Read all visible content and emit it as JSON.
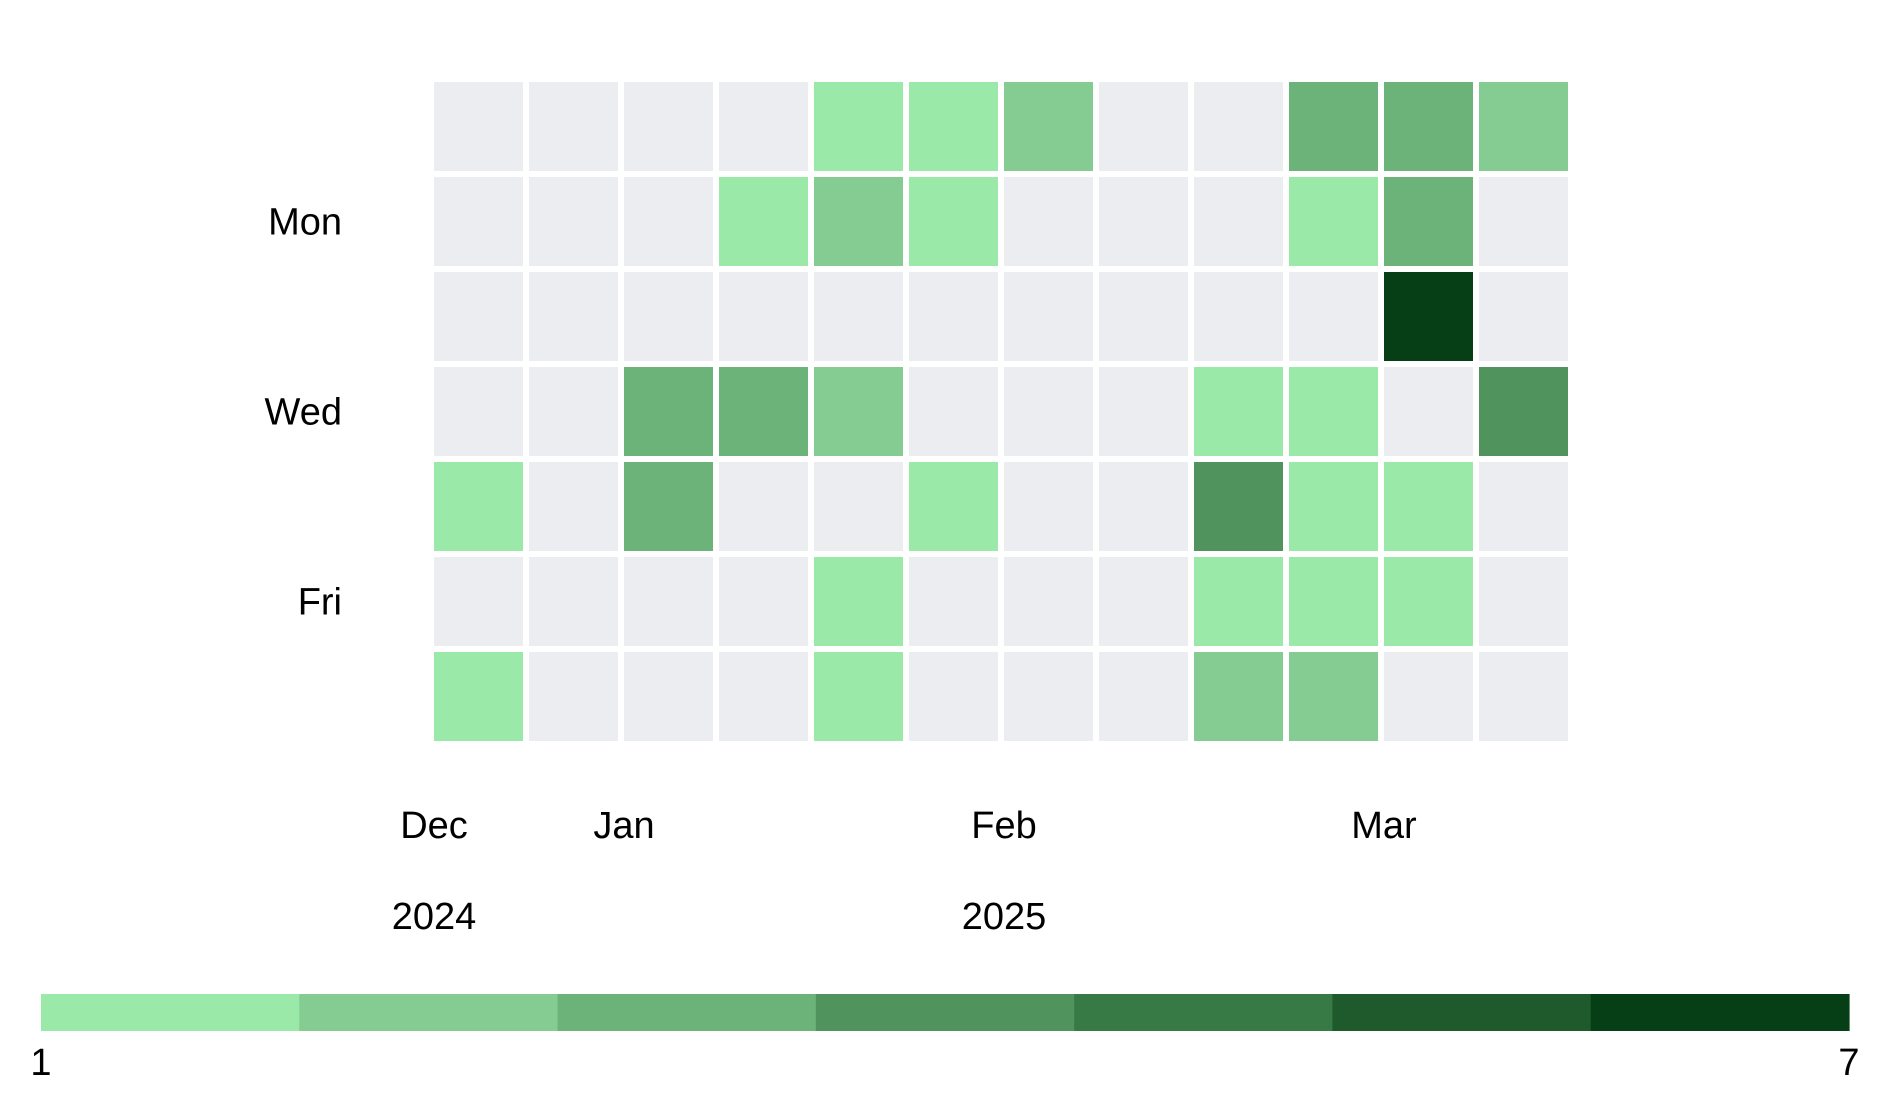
{
  "chart_data": {
    "type": "heatmap",
    "title": "",
    "row_labels": [
      {
        "row": 1,
        "text": "Mon"
      },
      {
        "row": 3,
        "text": "Wed"
      },
      {
        "row": 5,
        "text": "Fri"
      }
    ],
    "month_labels": [
      {
        "col": 0,
        "text": "Dec"
      },
      {
        "col": 2,
        "text": "Jan"
      },
      {
        "col": 6,
        "text": "Feb"
      },
      {
        "col": 10,
        "text": "Mar"
      }
    ],
    "year_labels": [
      {
        "col": 0,
        "text": "2024"
      },
      {
        "col": 6,
        "text": "2025"
      }
    ],
    "rows": 7,
    "cols": 12,
    "values": [
      [
        0,
        0,
        0,
        0,
        1,
        1,
        2,
        0,
        0,
        3,
        3,
        2
      ],
      [
        0,
        0,
        0,
        1,
        2,
        1,
        0,
        0,
        0,
        1,
        3,
        0
      ],
      [
        0,
        0,
        0,
        0,
        0,
        0,
        0,
        0,
        0,
        0,
        7,
        0
      ],
      [
        0,
        0,
        3,
        3,
        2,
        0,
        0,
        0,
        1,
        1,
        0,
        4
      ],
      [
        1,
        0,
        3,
        0,
        0,
        1,
        0,
        0,
        4,
        1,
        1,
        0
      ],
      [
        0,
        0,
        0,
        0,
        1,
        0,
        0,
        0,
        1,
        1,
        1,
        0
      ],
      [
        1,
        0,
        0,
        0,
        1,
        0,
        0,
        0,
        2,
        2,
        0,
        0
      ]
    ],
    "empty_color": "#ebedf0",
    "colorscale": [
      "#9be9a8",
      "#85cc92",
      "#6bb378",
      "#51935c",
      "#387a46",
      "#1e5a2b",
      "#063f16"
    ],
    "colorbar": {
      "min": 1,
      "max": 7,
      "min_label": "1",
      "max_label": "7"
    }
  }
}
